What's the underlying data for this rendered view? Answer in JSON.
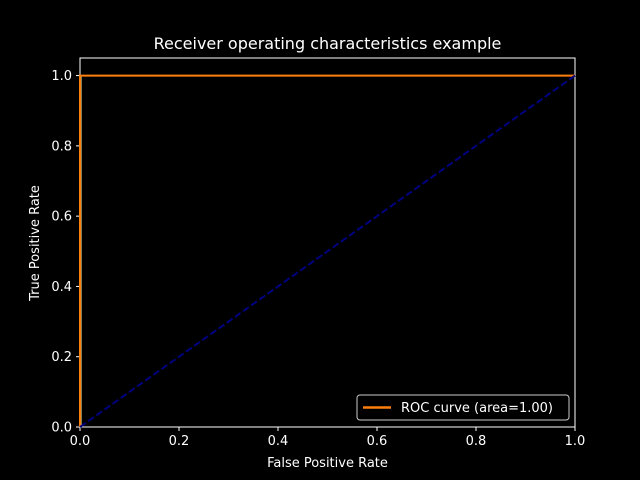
{
  "chart_data": {
    "type": "line",
    "title": "Receiver operating characteristics example",
    "xlabel": "False Positive Rate",
    "ylabel": "True Positive Rate",
    "xlim": [
      0.0,
      1.0
    ],
    "ylim": [
      0.0,
      1.05
    ],
    "xticks": [
      "0.0",
      "0.2",
      "0.4",
      "0.6",
      "0.8",
      "1.0"
    ],
    "yticks": [
      "0.0",
      "0.2",
      "0.4",
      "0.6",
      "0.8",
      "1.0"
    ],
    "grid": false,
    "legend_position": "lower-right",
    "series": [
      {
        "name": "ROC curve (area=1.00)",
        "color": "#ff7f0e",
        "style": "solid",
        "x": [
          0.0,
          0.0,
          1.0
        ],
        "y": [
          0.0,
          1.0,
          1.0
        ]
      },
      {
        "color": "#000080",
        "style": "dashed",
        "x": [
          0.0,
          1.0
        ],
        "y": [
          0.0,
          1.0
        ]
      }
    ],
    "colors": {
      "background": "#000000",
      "axes": "#ffffff",
      "text": "#ffffff"
    }
  }
}
